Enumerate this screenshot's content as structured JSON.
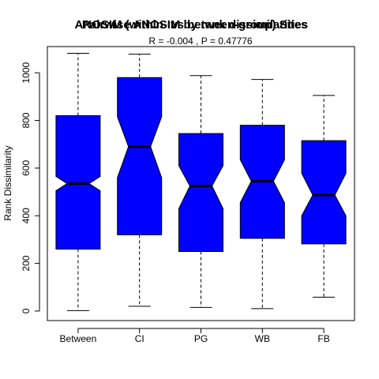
{
  "chart_data": {
    "type": "boxplot",
    "title_overlapped": [
      "ANOSIM (within- vs between-group) Sites",
      "Pairwise ANOSIM by rank dissimilarities"
    ],
    "subtitle": "R =  -0.004 ,  P =  0.47776",
    "xlabel": "",
    "ylabel": "Rank Dissimilarity",
    "ylim": [
      -40,
      1110
    ],
    "yticks": [
      0,
      200,
      400,
      600,
      800,
      1000
    ],
    "notched": true,
    "fill_color": "#0000ff",
    "categories": [
      "Between",
      "CI",
      "PG",
      "WB",
      "FB"
    ],
    "boxes": [
      {
        "name": "Between",
        "min": 2,
        "q1": 260,
        "median": 535,
        "q3": 820,
        "max": 1082,
        "notch_low": 505,
        "notch_high": 565
      },
      {
        "name": "CI",
        "min": 20,
        "q1": 320,
        "median": 690,
        "q3": 980,
        "max": 1078,
        "notch_low": 560,
        "notch_high": 815
      },
      {
        "name": "PG",
        "min": 15,
        "q1": 250,
        "median": 525,
        "q3": 745,
        "max": 988,
        "notch_low": 430,
        "notch_high": 610
      },
      {
        "name": "WB",
        "min": 10,
        "q1": 305,
        "median": 545,
        "q3": 780,
        "max": 972,
        "notch_low": 455,
        "notch_high": 635
      },
      {
        "name": "FB",
        "min": 58,
        "q1": 282,
        "median": 487,
        "q3": 715,
        "max": 905,
        "notch_low": 400,
        "notch_high": 578
      }
    ]
  }
}
